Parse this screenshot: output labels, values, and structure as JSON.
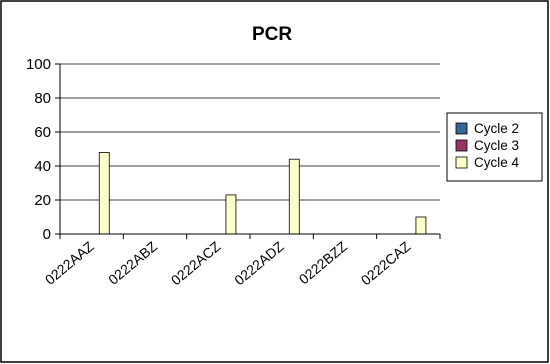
{
  "chart_data": {
    "type": "bar",
    "title": "PCR",
    "xlabel": "",
    "ylabel": "",
    "ylim": [
      0,
      100
    ],
    "yticks": [
      "0",
      "20",
      "40",
      "60",
      "80",
      "100"
    ],
    "grid": true,
    "legend_position": "right",
    "categories": [
      "0222AAZ",
      "0222ABZ",
      "0222ACZ",
      "0222ADZ",
      "0222BZZ",
      "0222CAZ"
    ],
    "series": [
      {
        "name": "Cycle 2",
        "color": "#336699",
        "values": [
          0,
          0,
          0,
          0,
          0,
          0
        ]
      },
      {
        "name": "Cycle 3",
        "color": "#993366",
        "values": [
          0,
          0,
          0,
          0,
          0,
          0
        ]
      },
      {
        "name": "Cycle 4",
        "color": "#ffffcc",
        "values": [
          48,
          0,
          23,
          44,
          0,
          10
        ]
      }
    ]
  }
}
